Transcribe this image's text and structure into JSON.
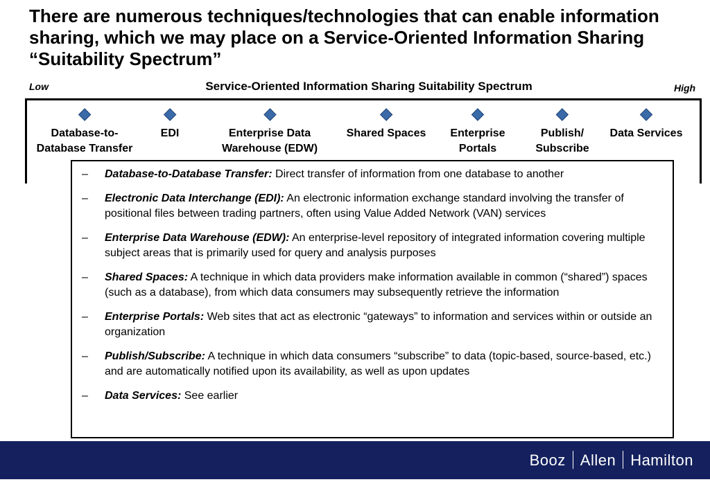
{
  "title": "There are numerous techniques/technologies that can enable information sharing, which we may place on a Service-Oriented Information Sharing “Suitability Spectrum”",
  "spectrum": {
    "title": "Service-Oriented Information Sharing Suitability Spectrum",
    "low_label": "Low",
    "high_label": "High",
    "nodes": [
      {
        "line1": "Database-to-",
        "line2": "Database Transfer"
      },
      {
        "line1": "EDI",
        "line2": ""
      },
      {
        "line1": "Enterprise Data",
        "line2": "Warehouse (EDW)"
      },
      {
        "line1": "Shared Spaces",
        "line2": ""
      },
      {
        "line1": "Enterprise",
        "line2": "Portals"
      },
      {
        "line1": "Publish/",
        "line2": "Subscribe"
      },
      {
        "line1": "Data Services",
        "line2": ""
      }
    ]
  },
  "descriptions": [
    {
      "dash": "–",
      "term": "Database-to-Database Transfer:",
      "text": " Direct transfer of information from one database to another"
    },
    {
      "dash": "–",
      "term": "Electronic Data Interchange (EDI):",
      "text": " An electronic information exchange standard involving the transfer of positional files between trading partners, often using Value Added Network (VAN) services"
    },
    {
      "dash": "–",
      "term": "Enterprise Data Warehouse (EDW):",
      "text": " An enterprise-level repository of integrated information covering multiple subject areas that is primarily used for query and analysis purposes"
    },
    {
      "dash": "–",
      "term": "Shared Spaces:",
      "text": " A technique in which data providers make information available in common (“shared”) spaces (such as a database), from which data consumers may subsequently retrieve the information"
    },
    {
      "dash": "–",
      "term": "Enterprise Portals:",
      "text": " Web sites that act as electronic “gateways” to information and services within or outside an organization"
    },
    {
      "dash": "–",
      "term": "Publish/Subscribe:",
      "text": " A technique in which data consumers “subscribe” to data (topic-based, source-based, etc.) and are automatically notified upon its availability, as well as upon updates"
    },
    {
      "dash": "–",
      "term": "Data Services:",
      "text": " See earlier"
    }
  ],
  "footer": {
    "logo_parts": [
      "Booz",
      "Allen",
      "Hamilton"
    ]
  },
  "colors": {
    "footer_band": "#14215e",
    "diamond": "#3a6aa8"
  }
}
